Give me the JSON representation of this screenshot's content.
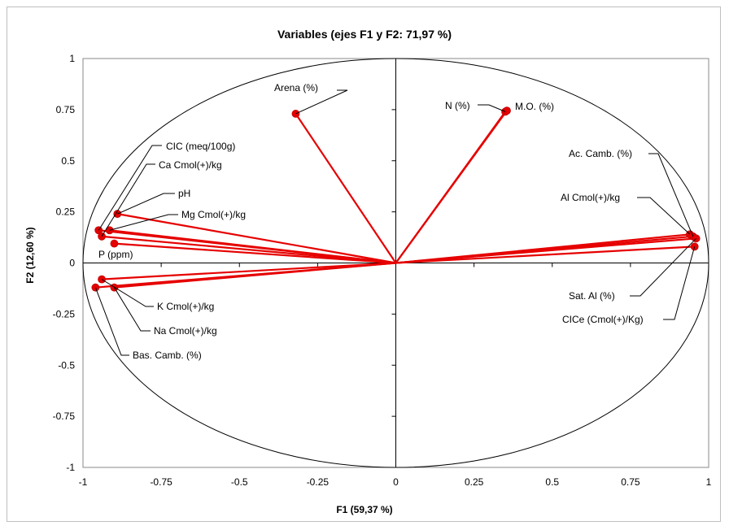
{
  "chart_data": {
    "type": "scatter",
    "title": "Variables (ejes F1 y F2: 71,97 %)",
    "xlabel": "F1 (59,37 %)",
    "ylabel": "F2 (12,60 %)",
    "xlim": [
      -1,
      1
    ],
    "ylim": [
      -1,
      1
    ],
    "x_ticks": [
      "-1",
      "-0.75",
      "-0.5",
      "-0.25",
      "0",
      "0.25",
      "0.5",
      "0.75",
      "1"
    ],
    "y_ticks": [
      "1",
      "0.75",
      "0.5",
      "0.25",
      "0",
      "-0.25",
      "-0.5",
      "-0.75",
      "-1"
    ],
    "correlation_circle": true,
    "grid": false,
    "vector_color": "#e60000",
    "points": [
      {
        "label": "Arena (%)",
        "x": -0.32,
        "y": 0.73
      },
      {
        "label": "N (%)",
        "x": 0.35,
        "y": 0.74
      },
      {
        "label": "M.O. (%)",
        "x": 0.355,
        "y": 0.745
      },
      {
        "label": "CIC (meq/100g)",
        "x": -0.95,
        "y": 0.16
      },
      {
        "label": "Ca Cmol(+)/kg",
        "x": -0.94,
        "y": 0.13
      },
      {
        "label": "pH",
        "x": -0.89,
        "y": 0.24
      },
      {
        "label": "Mg Cmol(+)/kg",
        "x": -0.915,
        "y": 0.16
      },
      {
        "label": "P (ppm)",
        "x": -0.9,
        "y": 0.095
      },
      {
        "label": "K Cmol(+)/kg",
        "x": -0.94,
        "y": -0.08
      },
      {
        "label": "Na Cmol(+)/kg",
        "x": -0.9,
        "y": -0.12
      },
      {
        "label": "Bas. Camb. (%)",
        "x": -0.96,
        "y": -0.12
      },
      {
        "label": "Ac. Camb. (%)",
        "x": 0.95,
        "y": 0.13
      },
      {
        "label": "Al Cmol(+)/kg",
        "x": 0.94,
        "y": 0.14
      },
      {
        "label": "Sat. Al (%)",
        "x": 0.96,
        "y": 0.12
      },
      {
        "label": "CICe (Cmol(+)/Kg)",
        "x": 0.955,
        "y": 0.08
      }
    ]
  }
}
